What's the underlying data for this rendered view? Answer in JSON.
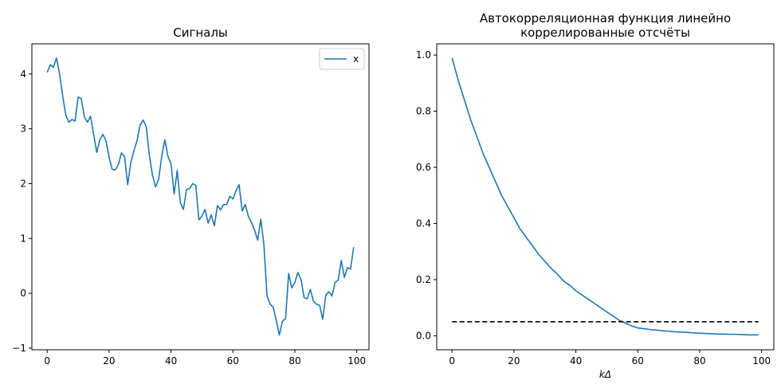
{
  "chart_data": [
    {
      "type": "line",
      "title": "Сигналы",
      "xlabel": "",
      "ylabel": "",
      "xlim": [
        -4.95,
        103.95
      ],
      "ylim": [
        -1.03,
        4.55
      ],
      "xticks": [
        0,
        20,
        40,
        60,
        80,
        100
      ],
      "yticks": [
        -1,
        0,
        1,
        2,
        3,
        4
      ],
      "grid": false,
      "legend": "top-right",
      "series": [
        {
          "name": "x",
          "color": "#1f77b4",
          "x": [
            0,
            1,
            2,
            3,
            4,
            5,
            6,
            7,
            8,
            9,
            10,
            11,
            12,
            13,
            14,
            15,
            16,
            17,
            18,
            19,
            20,
            21,
            22,
            23,
            24,
            25,
            26,
            27,
            28,
            29,
            30,
            31,
            32,
            33,
            34,
            35,
            36,
            37,
            38,
            39,
            40,
            41,
            42,
            43,
            44,
            45,
            46,
            47,
            48,
            49,
            50,
            51,
            52,
            53,
            54,
            55,
            56,
            57,
            58,
            59,
            60,
            61,
            62,
            63,
            64,
            65,
            66,
            67,
            68,
            69,
            70,
            71,
            72,
            73,
            74,
            75,
            76,
            77,
            78,
            79,
            80,
            81,
            82,
            83,
            84,
            85,
            86,
            87,
            88,
            89,
            90,
            91,
            92,
            93,
            94,
            95,
            96,
            97,
            98,
            99
          ],
          "values": [
            4.03,
            4.17,
            4.12,
            4.29,
            4.0,
            3.6,
            3.25,
            3.12,
            3.17,
            3.14,
            3.58,
            3.55,
            3.22,
            3.12,
            3.23,
            2.9,
            2.57,
            2.8,
            2.9,
            2.78,
            2.48,
            2.26,
            2.25,
            2.35,
            2.56,
            2.49,
            1.98,
            2.38,
            2.6,
            2.78,
            3.07,
            3.16,
            3.04,
            2.52,
            2.16,
            1.94,
            2.08,
            2.5,
            2.8,
            2.5,
            2.36,
            1.81,
            2.24,
            1.66,
            1.53,
            1.89,
            1.91,
            2.0,
            1.97,
            1.34,
            1.41,
            1.53,
            1.28,
            1.43,
            1.23,
            1.6,
            1.52,
            1.62,
            1.62,
            1.77,
            1.72,
            1.87,
            1.98,
            1.5,
            1.62,
            1.4,
            1.29,
            1.15,
            0.97,
            1.35,
            0.89,
            -0.04,
            -0.2,
            -0.25,
            -0.5,
            -0.76,
            -0.51,
            -0.46,
            0.36,
            0.1,
            0.2,
            0.38,
            0.25,
            -0.08,
            -0.1,
            0.07,
            -0.14,
            -0.2,
            -0.22,
            -0.47,
            -0.03,
            0.03,
            -0.05,
            0.2,
            0.24,
            0.6,
            0.29,
            0.47,
            0.44,
            0.84
          ]
        }
      ]
    },
    {
      "type": "line",
      "title": "Автокорреляционная функция линейно\nкоррелированные отсчёты",
      "xlabel": "kΔ",
      "ylabel": "",
      "xlim": [
        -4.95,
        103.95
      ],
      "ylim": [
        -0.05,
        1.04
      ],
      "xticks": [
        0,
        20,
        40,
        60,
        80,
        100
      ],
      "yticks": [
        0.0,
        0.2,
        0.4,
        0.6,
        0.8,
        1.0
      ],
      "grid": false,
      "series": [
        {
          "color": "#1f77b4",
          "x": [
            0,
            2,
            4,
            6,
            8,
            10,
            12,
            14,
            16,
            18,
            20,
            22,
            24,
            26,
            28,
            30,
            32,
            34,
            36,
            38,
            40,
            42,
            44,
            46,
            48,
            50,
            52,
            54,
            56,
            58,
            60,
            62,
            64,
            66,
            68,
            70,
            72,
            74,
            76,
            78,
            80,
            82,
            84,
            86,
            88,
            90,
            92,
            94,
            96,
            98,
            99
          ],
          "values": [
            0.99,
            0.91,
            0.84,
            0.77,
            0.71,
            0.65,
            0.6,
            0.55,
            0.5,
            0.46,
            0.42,
            0.38,
            0.35,
            0.32,
            0.29,
            0.265,
            0.24,
            0.22,
            0.195,
            0.18,
            0.16,
            0.145,
            0.13,
            0.115,
            0.1,
            0.085,
            0.07,
            0.055,
            0.045,
            0.035,
            0.028,
            0.025,
            0.022,
            0.02,
            0.018,
            0.016,
            0.014,
            0.013,
            0.012,
            0.01,
            0.009,
            0.008,
            0.007,
            0.006,
            0.006,
            0.005,
            0.005,
            0.004,
            0.003,
            0.003,
            0.003
          ],
          "style": "solid"
        },
        {
          "color": "#000000",
          "x": [
            0,
            99
          ],
          "values": [
            0.05,
            0.05
          ],
          "style": "dashed"
        }
      ]
    }
  ]
}
